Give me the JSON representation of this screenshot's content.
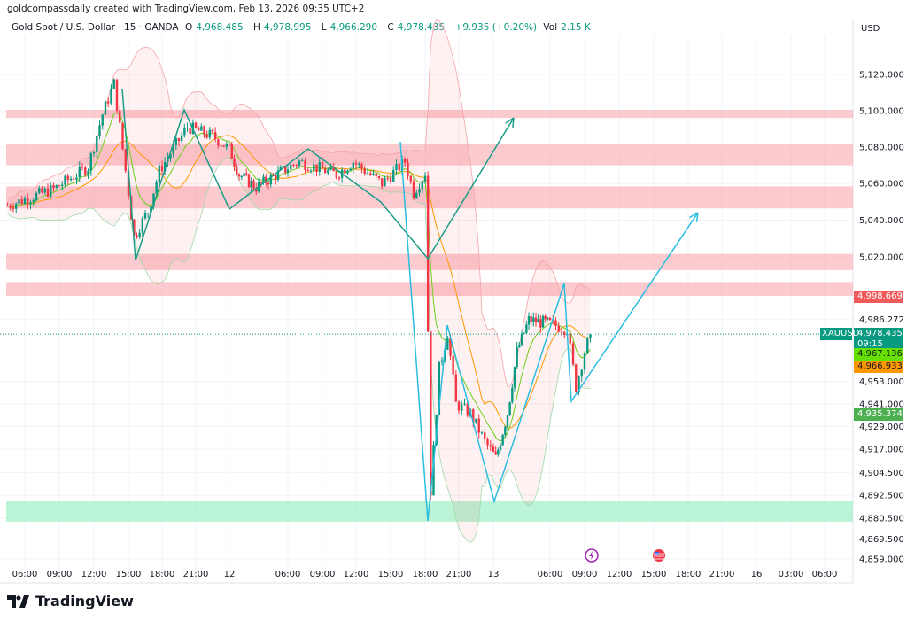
{
  "header": {
    "credit": "goldcompassdaily created with TradingView.com, Feb 13, 2026 09:35 UTC+2"
  },
  "legend": {
    "symbol": "Gold Spot / U.S. Dollar · 15 · OANDA",
    "o_label": "O",
    "o": "4,968.485",
    "h_label": "H",
    "h": "4,978.995",
    "l_label": "L",
    "l": "4,966.290",
    "c_label": "C",
    "c": "4,978.435",
    "change": "+9.935 (+0.20%)",
    "vol_label": "Vol",
    "vol": "2.15 K"
  },
  "currency": "USD",
  "brand": "TradingView",
  "colors": {
    "up": "#089981",
    "down": "#f23645",
    "zone_red": "#f7a1a8",
    "zone_green": "#9ff0c8",
    "pattern_teal": "#1a9c86",
    "pattern_blue": "#2bbde0",
    "ma_orange": "#ff9800",
    "ma_green": "#4caf50"
  },
  "badges": [
    {
      "value": "4,998.669",
      "color": "#f05a5a",
      "price": 4998.669
    },
    {
      "value": "4,978.435",
      "sub": "09:15",
      "color": "#089981",
      "price": 4978.435
    },
    {
      "value": "4,967.136",
      "color": "#66e000",
      "price": 4967.136
    },
    {
      "value": "4,966.933",
      "color": "#ff9800",
      "price": 4966.933
    },
    {
      "value": "4,935.374",
      "color": "#4caf50",
      "price": 4935.374
    }
  ],
  "symbol_tag": "XAUUSD",
  "events": [
    {
      "icon": "lightning-icon",
      "time": "Feb 13 09:00"
    },
    {
      "icon": "us-flag-icon",
      "time": "Feb 13 15:00"
    }
  ],
  "chart_data": {
    "type": "candlestick",
    "symbol": "XAUUSD",
    "interval": "15",
    "y_scale": "log",
    "ylim": [
      4859,
      5120
    ],
    "y_ticks": [
      "5,120.000",
      "5,100.000",
      "5,080.000",
      "5,060.000",
      "5,040.000",
      "5,020.000",
      "4,986.272",
      "4,953.000",
      "4,941.000",
      "4,929.000",
      "4,917.000",
      "4,904.500",
      "4,892.500",
      "4,880.500",
      "4,869.500",
      "4,859.000"
    ],
    "x_ticks": [
      "06:00",
      "09:00",
      "12:00",
      "15:00",
      "18:00",
      "21:00",
      "12",
      "06:00",
      "09:00",
      "12:00",
      "15:00",
      "18:00",
      "21:00",
      "13",
      "06:00",
      "09:00",
      "12:00",
      "15:00",
      "18:00",
      "21:00",
      "16",
      "03:00",
      "06:00"
    ],
    "price_path": [
      [
        "Feb 11 04:30",
        5048
      ],
      [
        "Feb 11 08:30",
        5057
      ],
      [
        "Feb 11 11:30",
        5069
      ],
      [
        "Feb 11 12:45",
        5098
      ],
      [
        "Feb 11 13:45",
        5115
      ],
      [
        "Feb 11 15:30",
        5031
      ],
      [
        "Feb 11 16:45",
        5045
      ],
      [
        "Feb 11 17:45",
        5067
      ],
      [
        "Feb 11 20:15",
        5091
      ],
      [
        "Feb 11 22:30",
        5086
      ],
      [
        "Feb 12 00:00",
        5079
      ],
      [
        "Feb 12 01:00",
        5065
      ],
      [
        "Feb 12 02:45",
        5058
      ],
      [
        "Feb 12 07:00",
        5072
      ],
      [
        "Feb 12 10:15",
        5065
      ],
      [
        "Feb 12 11:45",
        5072
      ],
      [
        "Feb 12 14:15",
        5060
      ],
      [
        "Feb 12 16:15",
        5072
      ],
      [
        "Feb 12 17:00",
        5055
      ],
      [
        "Feb 12 18:00",
        5066
      ],
      [
        "Feb 12 18:30",
        4895
      ],
      [
        "Feb 12 19:15",
        4960
      ],
      [
        "Feb 12 20:00",
        4979
      ],
      [
        "Feb 12 20:45",
        4941
      ],
      [
        "Feb 12 22:00",
        4936
      ],
      [
        "Feb 12 23:15",
        4921
      ],
      [
        "Feb 13 00:15",
        4912
      ],
      [
        "Feb 13 01:30",
        4936
      ],
      [
        "Feb 13 02:30",
        4969
      ],
      [
        "Feb 13 03:45",
        4986
      ],
      [
        "Feb 13 06:00",
        4984
      ],
      [
        "Feb 13 07:30",
        4981
      ],
      [
        "Feb 13 08:15",
        4950
      ],
      [
        "Feb 13 09:00",
        4969
      ],
      [
        "Feb 13 09:30",
        4978.435
      ]
    ],
    "zones": [
      {
        "from": 5096,
        "to": 5100.4,
        "color": "red"
      },
      {
        "from": 5070,
        "to": 5082,
        "color": "red"
      },
      {
        "from": 5046.5,
        "to": 5058.5,
        "color": "red"
      },
      {
        "from": 5013,
        "to": 5021.7,
        "color": "red"
      },
      {
        "from": 4999,
        "to": 5006.5,
        "color": "red"
      },
      {
        "from": 4878.6,
        "to": 4889.6,
        "color": "green"
      }
    ],
    "last_price": 4978.435
  }
}
